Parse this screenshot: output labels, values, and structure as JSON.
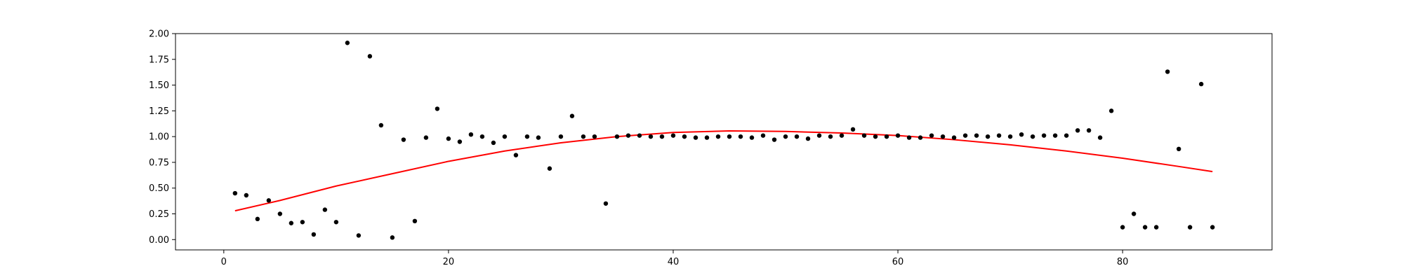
{
  "chart_data": {
    "type": "scatter",
    "title": "",
    "xlabel": "",
    "ylabel": "",
    "xlim": [
      -4.3,
      93.3
    ],
    "ylim": [
      -0.1,
      2.0
    ],
    "xticks": [
      0,
      20,
      40,
      60,
      80
    ],
    "yticks": [
      0.0,
      0.25,
      0.5,
      0.75,
      1.0,
      1.25,
      1.5,
      1.75,
      2.0
    ],
    "grid": false,
    "legend": "none",
    "colors": {
      "points": "#000000",
      "fit": "#ff0000",
      "axes": "#000000"
    },
    "series": [
      {
        "kind": "points",
        "x": [
          1,
          2,
          3,
          4,
          5,
          6,
          7,
          8,
          9,
          10,
          11,
          12,
          13,
          14,
          15,
          16,
          17,
          18,
          19,
          20,
          21,
          22,
          23,
          24,
          25,
          26,
          27,
          28,
          29,
          30,
          31,
          32,
          33,
          34,
          35,
          36,
          37,
          38,
          39,
          40,
          41,
          42,
          43,
          44,
          45,
          46,
          47,
          48,
          49,
          50,
          51,
          52,
          53,
          54,
          55,
          56,
          57,
          58,
          59,
          60,
          61,
          62,
          63,
          64,
          65,
          66,
          67,
          68,
          69,
          70,
          71,
          72,
          73,
          74,
          75,
          76,
          77,
          78,
          79,
          80,
          81,
          82,
          83,
          84,
          85,
          86,
          87,
          88
        ],
        "y": [
          0.45,
          0.43,
          0.2,
          0.38,
          0.25,
          0.16,
          0.17,
          0.05,
          0.29,
          0.17,
          1.91,
          0.04,
          1.78,
          1.11,
          0.02,
          0.97,
          0.18,
          0.99,
          1.27,
          0.98,
          0.95,
          1.02,
          1.0,
          0.94,
          1.0,
          0.82,
          1.0,
          0.99,
          0.69,
          1.0,
          1.2,
          1.0,
          1.0,
          0.35,
          1.0,
          1.01,
          1.01,
          1.0,
          1.0,
          1.01,
          1.0,
          0.99,
          0.99,
          1.0,
          1.0,
          1.0,
          0.99,
          1.01,
          0.97,
          1.0,
          1.0,
          0.98,
          1.01,
          1.0,
          1.01,
          1.07,
          1.01,
          1.0,
          1.0,
          1.01,
          0.99,
          0.99,
          1.01,
          1.0,
          0.99,
          1.01,
          1.01,
          1.0,
          1.01,
          1.0,
          1.02,
          1.0,
          1.01,
          1.01,
          1.01,
          1.06,
          1.06,
          0.99,
          1.25,
          0.12,
          0.25,
          0.12,
          0.12,
          1.63,
          0.88,
          0.12,
          1.51,
          0.12
        ]
      },
      {
        "kind": "line",
        "x": [
          1,
          5,
          10,
          15,
          20,
          25,
          30,
          35,
          40,
          45,
          50,
          55,
          60,
          65,
          70,
          75,
          80,
          85,
          88
        ],
        "y": [
          0.28,
          0.38,
          0.52,
          0.64,
          0.76,
          0.86,
          0.94,
          1.0,
          1.04,
          1.055,
          1.05,
          1.035,
          1.01,
          0.97,
          0.92,
          0.86,
          0.79,
          0.71,
          0.66
        ]
      }
    ]
  }
}
